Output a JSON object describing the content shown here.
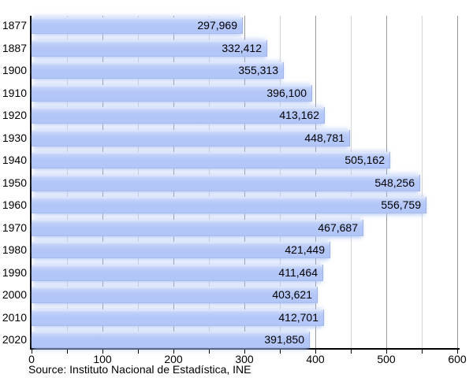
{
  "chart_data": {
    "type": "bar",
    "orientation": "horizontal",
    "title": "",
    "xlabel": "",
    "ylabel": "",
    "categories": [
      "1877",
      "1887",
      "1900",
      "1910",
      "1920",
      "1930",
      "1940",
      "1950",
      "1960",
      "1970",
      "1980",
      "1990",
      "2000",
      "2010",
      "2020"
    ],
    "values": [
      297969,
      332412,
      355313,
      396100,
      413162,
      448781,
      505162,
      548256,
      556759,
      467687,
      421449,
      411464,
      403621,
      412701,
      391850
    ],
    "value_labels": [
      "297,969",
      "332,412",
      "355,313",
      "396,100",
      "413,162",
      "448,781",
      "505,162",
      "548,256",
      "556,759",
      "467,687",
      "421,449",
      "411,464",
      "403,621",
      "412,701",
      "391,850"
    ],
    "xlim": [
      0,
      600000
    ],
    "x_tick_labels": [
      "0",
      "100",
      "200",
      "300",
      "400",
      "500",
      "600"
    ],
    "x_tick_label_step": 100000,
    "x_tick_unit": "thousands",
    "grid": true,
    "gridline_step": 50000,
    "legend": "none",
    "colors": {
      "bar_fill": "#b4c7f8",
      "bar_gloss": "#e3eafd",
      "bar_edge": "#9db3ea",
      "gridline_minor": "#d5d5d5",
      "gridline_major": "#9a9a9a",
      "axis": "#000000",
      "text": "#000000",
      "background": "#ffffff"
    }
  },
  "source": {
    "label": "Source: Instituto Nacional de Estadística, INE"
  }
}
